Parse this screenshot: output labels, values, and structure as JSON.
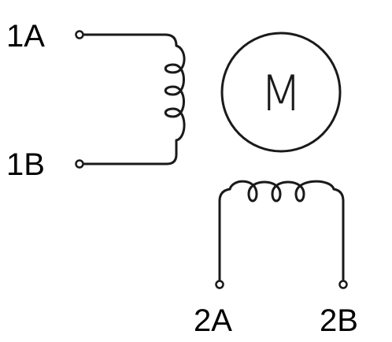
{
  "terminals": {
    "coil1_top": "1A",
    "coil1_bottom": "1B",
    "coil2_left": "2A",
    "coil2_right": "2B"
  },
  "motor": {
    "letter": "M"
  },
  "colors": {
    "line": "#1a1a1a",
    "text": "#000000",
    "background": "#ffffff"
  }
}
